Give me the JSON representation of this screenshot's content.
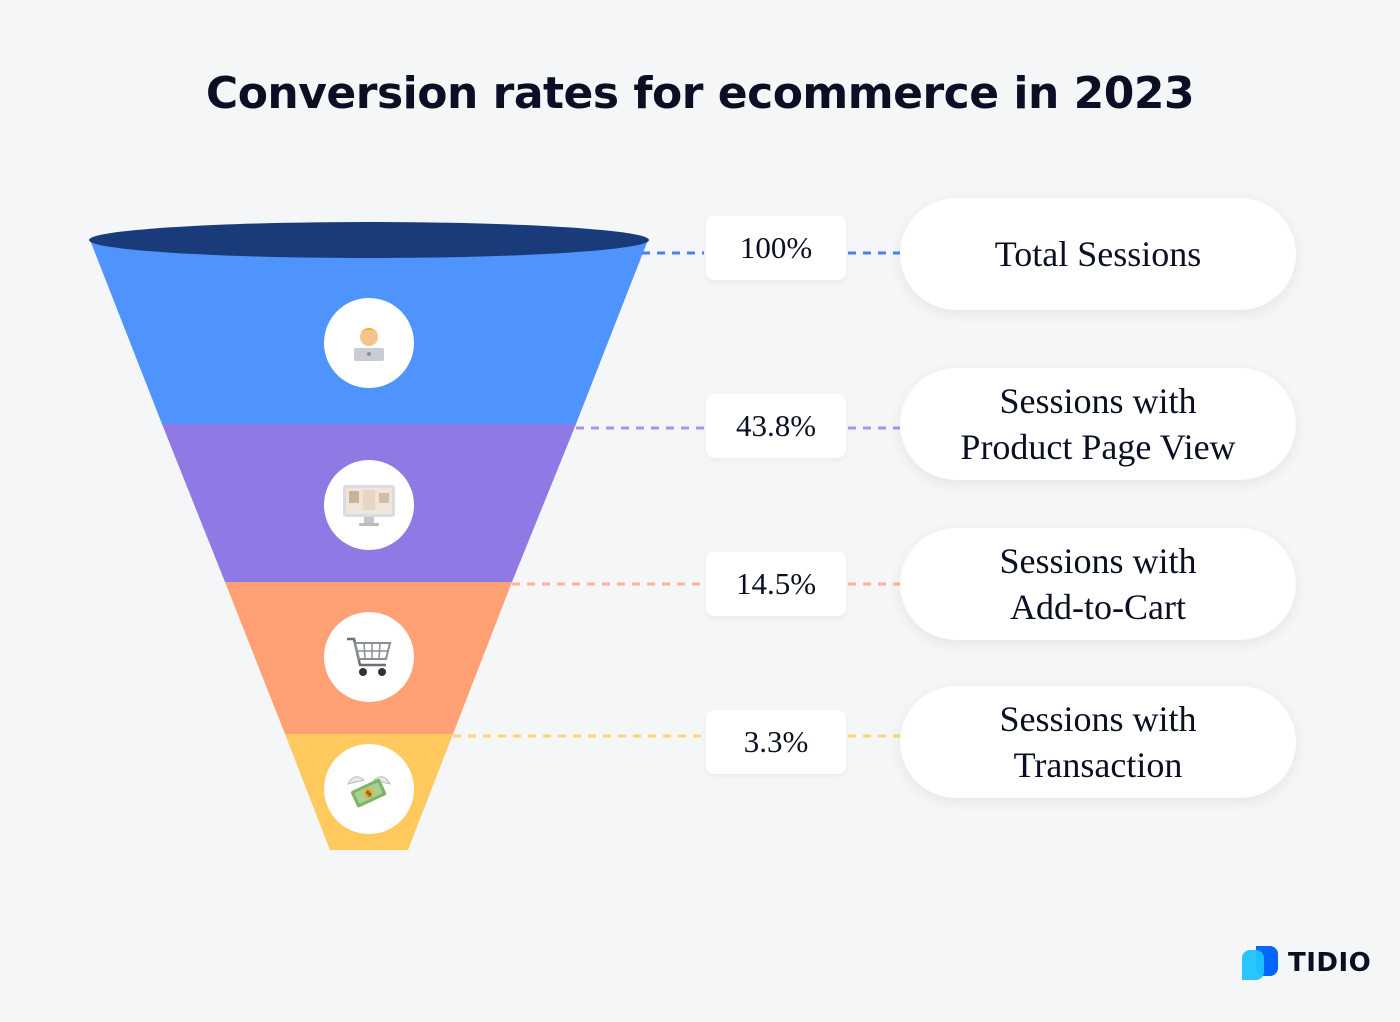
{
  "title": "Conversion rates for ecommerce in 2023",
  "chart_data": {
    "type": "funnel",
    "title": "Conversion rates for ecommerce in 2023",
    "stages": [
      {
        "label": "Total Sessions",
        "value": 100,
        "display": "100%",
        "color": "#4e94fc",
        "line_color": "#4e7ef0",
        "icon": "person-with-laptop-icon"
      },
      {
        "label": "Sessions with\nProduct Page View",
        "value": 43.8,
        "display": "43.8%",
        "color": "#8f79e5",
        "line_color": "#a795ec",
        "icon": "desktop-computer-icon"
      },
      {
        "label": "Sessions with\nAdd-to-Cart",
        "value": 14.5,
        "display": "14.5%",
        "color": "#ffa075",
        "line_color": "#ffb393",
        "icon": "shopping-cart-icon"
      },
      {
        "label": "Sessions with\nTransaction",
        "value": 3.3,
        "display": "3.3%",
        "color": "#ffc95e",
        "line_color": "#ffd37a",
        "icon": "money-with-wings-icon"
      }
    ],
    "rim_color": "#1a3b7a"
  },
  "brand": {
    "name": "TIDIO",
    "primary": "#0566ff",
    "secondary": "#1ec3ff"
  }
}
